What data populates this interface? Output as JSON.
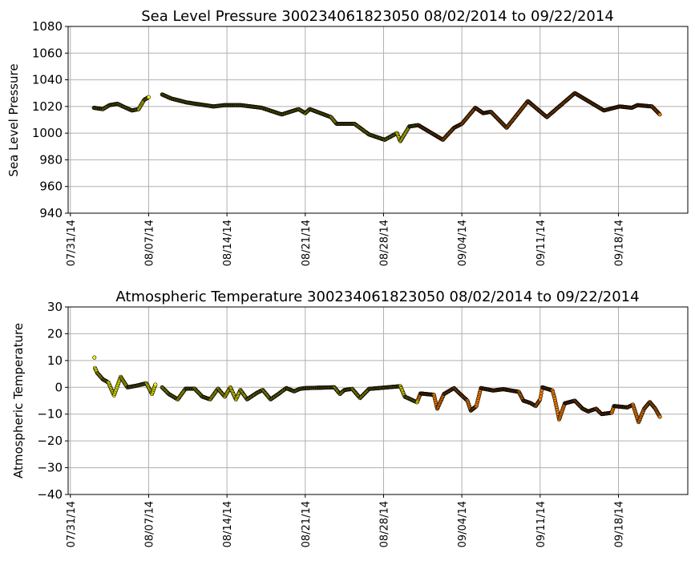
{
  "chart_data": [
    {
      "type": "scatter",
      "title": "Sea Level Pressure 300234061823050  08/02/2014 to 09/22/2014",
      "xlabel": "",
      "ylabel": "Sea Level Pressure",
      "ylim": [
        940,
        1080
      ],
      "yticks": [
        "940",
        "960",
        "980",
        "1000",
        "1020",
        "1040",
        "1060",
        "1080"
      ],
      "x_unit": "days since 07/31/14",
      "xlim": [
        -0.2,
        55.2
      ],
      "xticks": [
        {
          "day": 0,
          "label": "07/31/14"
        },
        {
          "day": 7,
          "label": "08/07/14"
        },
        {
          "day": 14,
          "label": "08/14/14"
        },
        {
          "day": 21,
          "label": "08/21/14"
        },
        {
          "day": 28,
          "label": "08/28/14"
        },
        {
          "day": 35,
          "label": "09/04/14"
        },
        {
          "day": 42,
          "label": "09/11/14"
        },
        {
          "day": 49,
          "label": "09/18/14"
        }
      ],
      "grid": true,
      "color_change_day": 31.1,
      "colors": {
        "early": "#ffff00",
        "late": "#ff8000",
        "edge": "#000000"
      },
      "segments": [
        [
          [
            2.1,
            1019
          ],
          [
            2.9,
            1018
          ],
          [
            3.5,
            1021
          ],
          [
            4.2,
            1022
          ],
          [
            4.7,
            1020
          ],
          [
            5.5,
            1017
          ],
          [
            6.1,
            1018
          ],
          [
            6.6,
            1025
          ],
          [
            7.0,
            1027
          ]
        ],
        [
          [
            8.2,
            1029
          ],
          [
            9.0,
            1026
          ],
          [
            10.4,
            1023
          ],
          [
            12.8,
            1020
          ],
          [
            13.8,
            1021
          ],
          [
            15.2,
            1021
          ],
          [
            17.1,
            1019
          ],
          [
            18.9,
            1014
          ],
          [
            20.4,
            1018
          ],
          [
            21.0,
            1015
          ],
          [
            21.4,
            1018
          ],
          [
            23.3,
            1012
          ],
          [
            23.8,
            1007
          ],
          [
            25.4,
            1007
          ],
          [
            26.7,
            999
          ],
          [
            28.1,
            995
          ],
          [
            29.2,
            1000
          ],
          [
            29.5,
            994
          ],
          [
            30.3,
            1005
          ],
          [
            31.1,
            1006
          ],
          [
            33.3,
            995
          ],
          [
            34.3,
            1004
          ],
          [
            35.0,
            1007
          ],
          [
            36.2,
            1019
          ],
          [
            36.9,
            1015
          ],
          [
            37.6,
            1016
          ],
          [
            39.0,
            1004
          ],
          [
            40.9,
            1024
          ],
          [
            42.6,
            1012
          ],
          [
            45.1,
            1030
          ],
          [
            47.7,
            1017
          ],
          [
            49.1,
            1020
          ],
          [
            50.2,
            1019
          ],
          [
            50.7,
            1021
          ],
          [
            52.0,
            1020
          ],
          [
            52.7,
            1014
          ]
        ]
      ]
    },
    {
      "type": "scatter",
      "title": "Atmospheric Temperature 300234061823050  08/02/2014 to 09/22/2014",
      "xlabel": "",
      "ylabel": "Atmospheric Temperature",
      "ylim": [
        -40,
        30
      ],
      "yticks": [
        "−40",
        "−30",
        "−20",
        "−10",
        "0",
        "10",
        "20",
        "30"
      ],
      "x_unit": "days since 07/31/14",
      "xlim": [
        -0.2,
        55.2
      ],
      "xticks": [
        {
          "day": 0,
          "label": "07/31/14"
        },
        {
          "day": 7,
          "label": "08/07/14"
        },
        {
          "day": 14,
          "label": "08/14/14"
        },
        {
          "day": 21,
          "label": "08/21/14"
        },
        {
          "day": 28,
          "label": "08/28/14"
        },
        {
          "day": 35,
          "label": "09/04/14"
        },
        {
          "day": 42,
          "label": "09/11/14"
        },
        {
          "day": 49,
          "label": "09/18/14"
        }
      ],
      "grid": true,
      "color_change_day": 31.1,
      "colors": {
        "early": "#ffff00",
        "late": "#ff8000",
        "edge": "#000000"
      },
      "segments": [
        [
          [
            2.15,
            11.1
          ]
        ],
        [
          [
            2.2,
            7.2
          ],
          [
            2.4,
            5.4
          ],
          [
            2.9,
            3.0
          ],
          [
            3.4,
            1.8
          ],
          [
            3.9,
            -3.0
          ],
          [
            4.5,
            3.9
          ],
          [
            5.1,
            0
          ],
          [
            5.8,
            0.5
          ],
          [
            6.8,
            1.5
          ],
          [
            7.3,
            -2.5
          ],
          [
            7.6,
            1.0
          ]
        ],
        [
          [
            8.2,
            0
          ],
          [
            8.8,
            -2.5
          ],
          [
            9.6,
            -4.5
          ],
          [
            10.3,
            -0.5
          ],
          [
            11.1,
            -0.5
          ],
          [
            11.8,
            -3.5
          ],
          [
            12.5,
            -4.5
          ],
          [
            13.2,
            -0.5
          ],
          [
            13.8,
            -3.5
          ],
          [
            14.3,
            0
          ],
          [
            14.8,
            -4.5
          ],
          [
            15.2,
            -1
          ],
          [
            15.8,
            -4.5
          ],
          [
            16.7,
            -2
          ],
          [
            17.2,
            -1
          ],
          [
            17.9,
            -4.5
          ],
          [
            18.6,
            -2.5
          ],
          [
            19.3,
            -0.3
          ],
          [
            20.0,
            -1.5
          ],
          [
            20.5,
            -0.6
          ],
          [
            21.0,
            -0.3
          ],
          [
            23.6,
            0
          ],
          [
            24.1,
            -2.5
          ],
          [
            24.5,
            -1
          ],
          [
            25.2,
            -0.6
          ],
          [
            25.9,
            -4
          ],
          [
            26.7,
            -0.6
          ],
          [
            29.5,
            0.4
          ],
          [
            29.9,
            -3.5
          ],
          [
            31.0,
            -5.6
          ],
          [
            31.3,
            -2.3
          ],
          [
            32.5,
            -2.8
          ],
          [
            32.8,
            -8
          ],
          [
            33.4,
            -2.5
          ],
          [
            34.3,
            -0.3
          ],
          [
            34.8,
            -2.3
          ],
          [
            35.5,
            -5
          ],
          [
            35.8,
            -8.7
          ],
          [
            36.3,
            -7
          ],
          [
            36.7,
            -0.3
          ],
          [
            37.8,
            -1.2
          ],
          [
            38.7,
            -0.7
          ],
          [
            40.1,
            -1.7
          ],
          [
            40.5,
            -5
          ],
          [
            41.1,
            -5.8
          ],
          [
            41.6,
            -7
          ],
          [
            42.0,
            -4.5
          ],
          [
            42.2,
            0
          ],
          [
            43.1,
            -1.2
          ],
          [
            43.3,
            -4.2
          ],
          [
            43.7,
            -12
          ],
          [
            44.2,
            -6
          ],
          [
            45.1,
            -5
          ],
          [
            45.8,
            -8
          ],
          [
            46.3,
            -9
          ],
          [
            47.0,
            -8
          ],
          [
            47.5,
            -10
          ],
          [
            48.4,
            -9.5
          ],
          [
            48.6,
            -7
          ],
          [
            49.8,
            -7.5
          ],
          [
            50.3,
            -6.5
          ],
          [
            50.8,
            -13
          ],
          [
            51.3,
            -8
          ],
          [
            51.8,
            -5.5
          ],
          [
            52.3,
            -8
          ],
          [
            52.7,
            -11
          ]
        ]
      ]
    }
  ]
}
